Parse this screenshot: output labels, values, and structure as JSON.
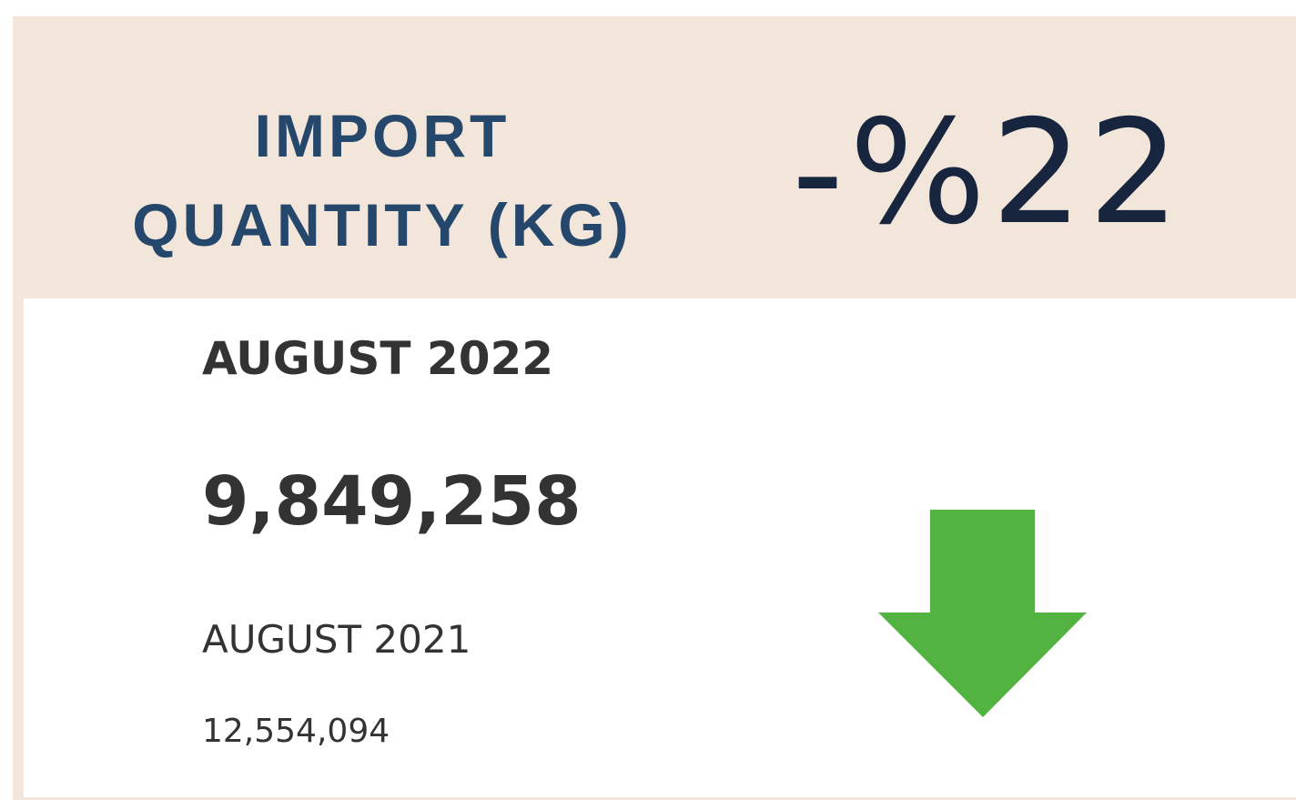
{
  "card": {
    "title": "IMPORT QUANTITY (KG)",
    "change": "-%22",
    "current_label": "AUGUST 2022",
    "current_value": "9,849,258",
    "previous_label": "AUGUST 2021",
    "previous_value": "12,554,094"
  }
}
